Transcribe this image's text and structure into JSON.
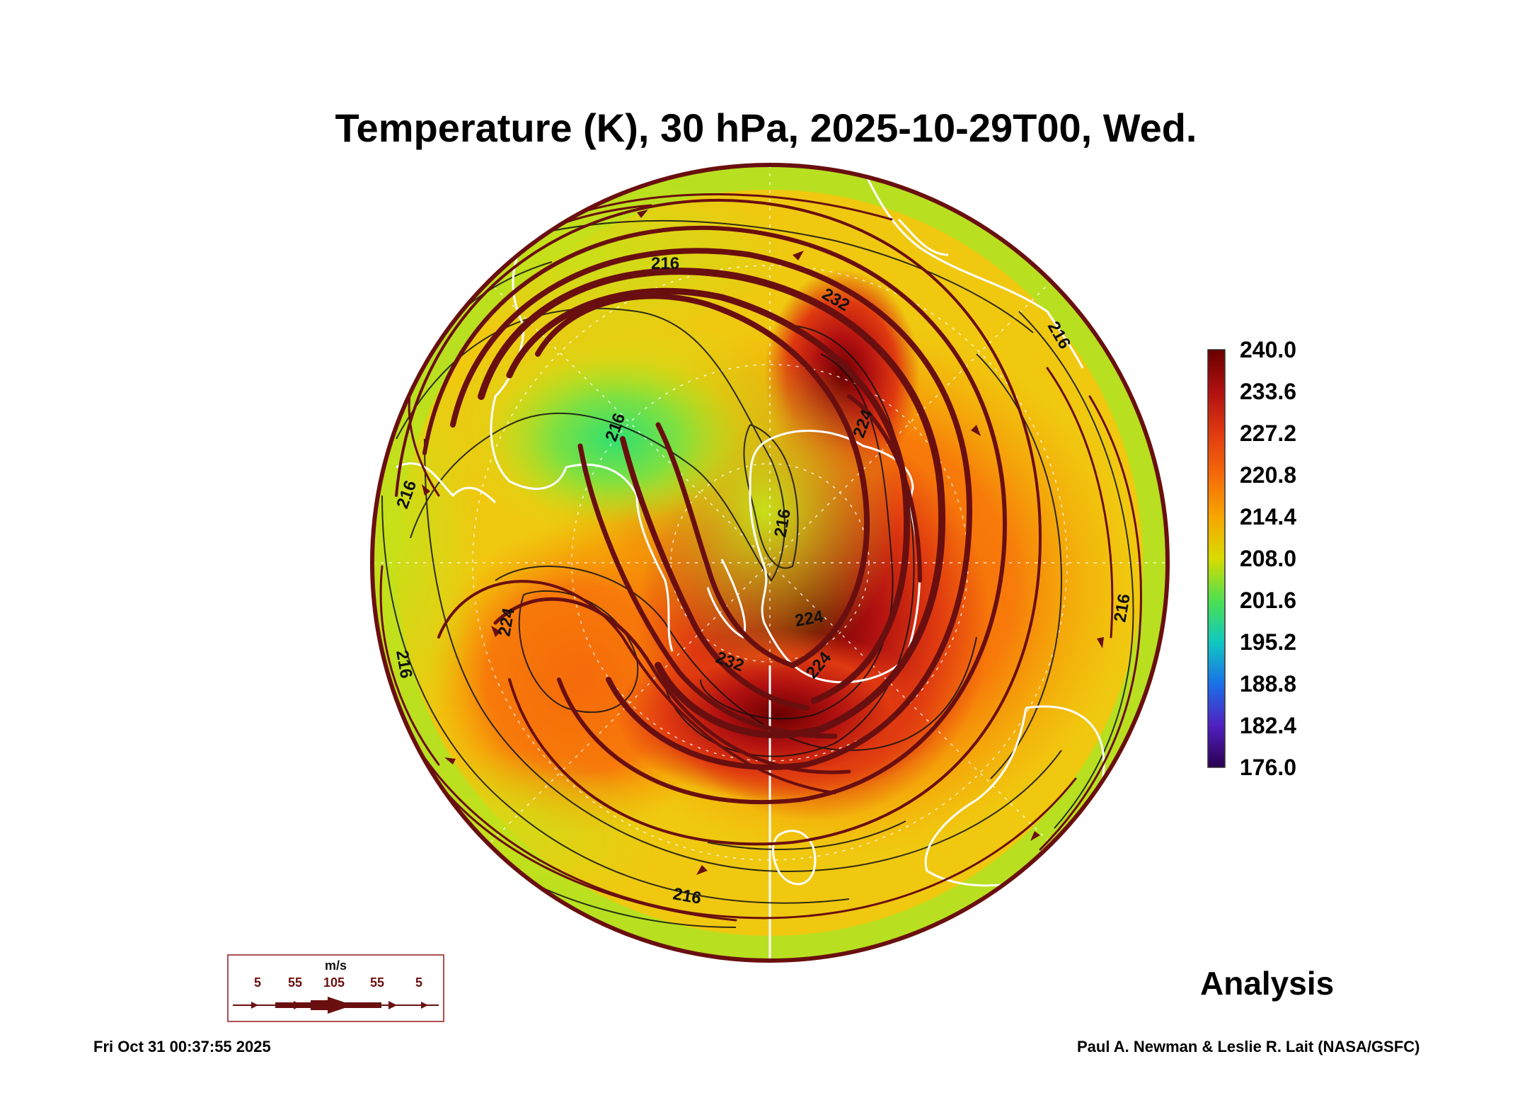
{
  "title": "Temperature (K), 30 hPa, 2025-10-29T00, Wed.",
  "colorbar": {
    "labels": [
      "240.0",
      "233.6",
      "227.2",
      "220.8",
      "214.4",
      "208.0",
      "201.6",
      "195.2",
      "188.8",
      "182.4",
      "176.0"
    ],
    "min": 176.0,
    "max": 240.0,
    "colors_top_to_bottom": [
      "#6a0000",
      "#b01010",
      "#e03a10",
      "#f56a0a",
      "#f7a500",
      "#e8d000",
      "#b4e01e",
      "#4ee050",
      "#10d0a0",
      "#1a70e8",
      "#5020c0",
      "#3a006a"
    ]
  },
  "contour_labels": [
    "216",
    "216",
    "216",
    "216",
    "216",
    "224",
    "224",
    "224",
    "232",
    "232",
    "216",
    "216",
    "216",
    "224"
  ],
  "wind_legend": {
    "unit": "m/s",
    "values": [
      "5",
      "55",
      "105",
      "55",
      "5"
    ]
  },
  "analysis_label": "Analysis",
  "footer": {
    "timestamp": "Fri Oct 31 00:37:55 2025",
    "credit": "Paul A. Newman & Leslie R. Lait (NASA/GSFC)"
  },
  "colors": {
    "streamline": "#6a0f0f",
    "coast": "#ffffff",
    "contour": "#111111"
  }
}
